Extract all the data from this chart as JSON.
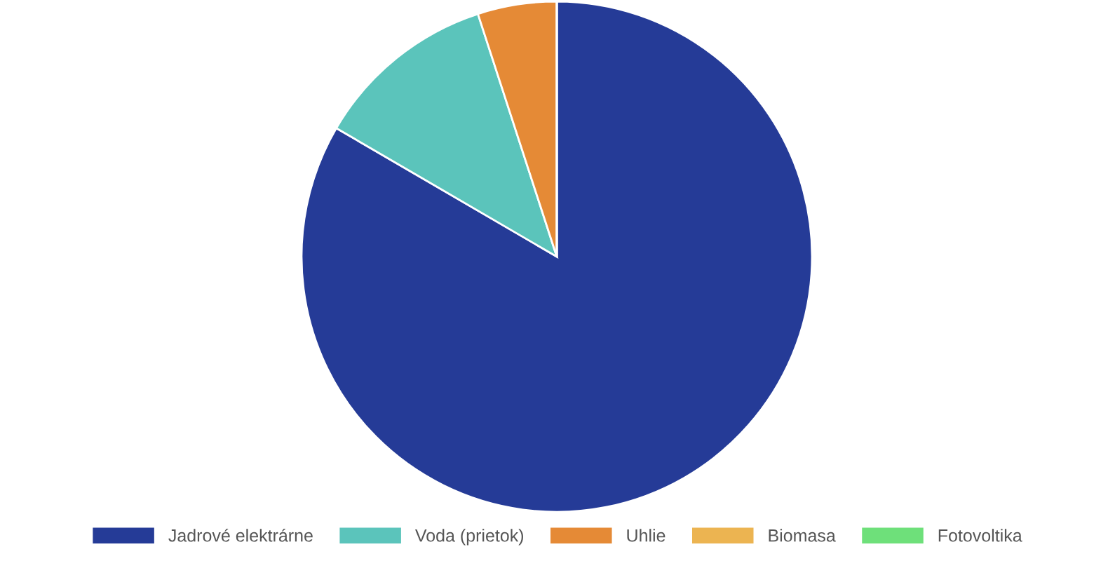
{
  "chart_data": {
    "type": "pie",
    "categories": [
      "Jadrové elektrárne",
      "Voda (prietok)",
      "Uhlie",
      "Biomasa",
      "Fotovoltika"
    ],
    "values": [
      83.4,
      11.6,
      5.0,
      0,
      0
    ],
    "colors": [
      "#253b97",
      "#5bc4bb",
      "#e58a36",
      "#ecb451",
      "#6ee07a"
    ],
    "legend": "bottom"
  }
}
